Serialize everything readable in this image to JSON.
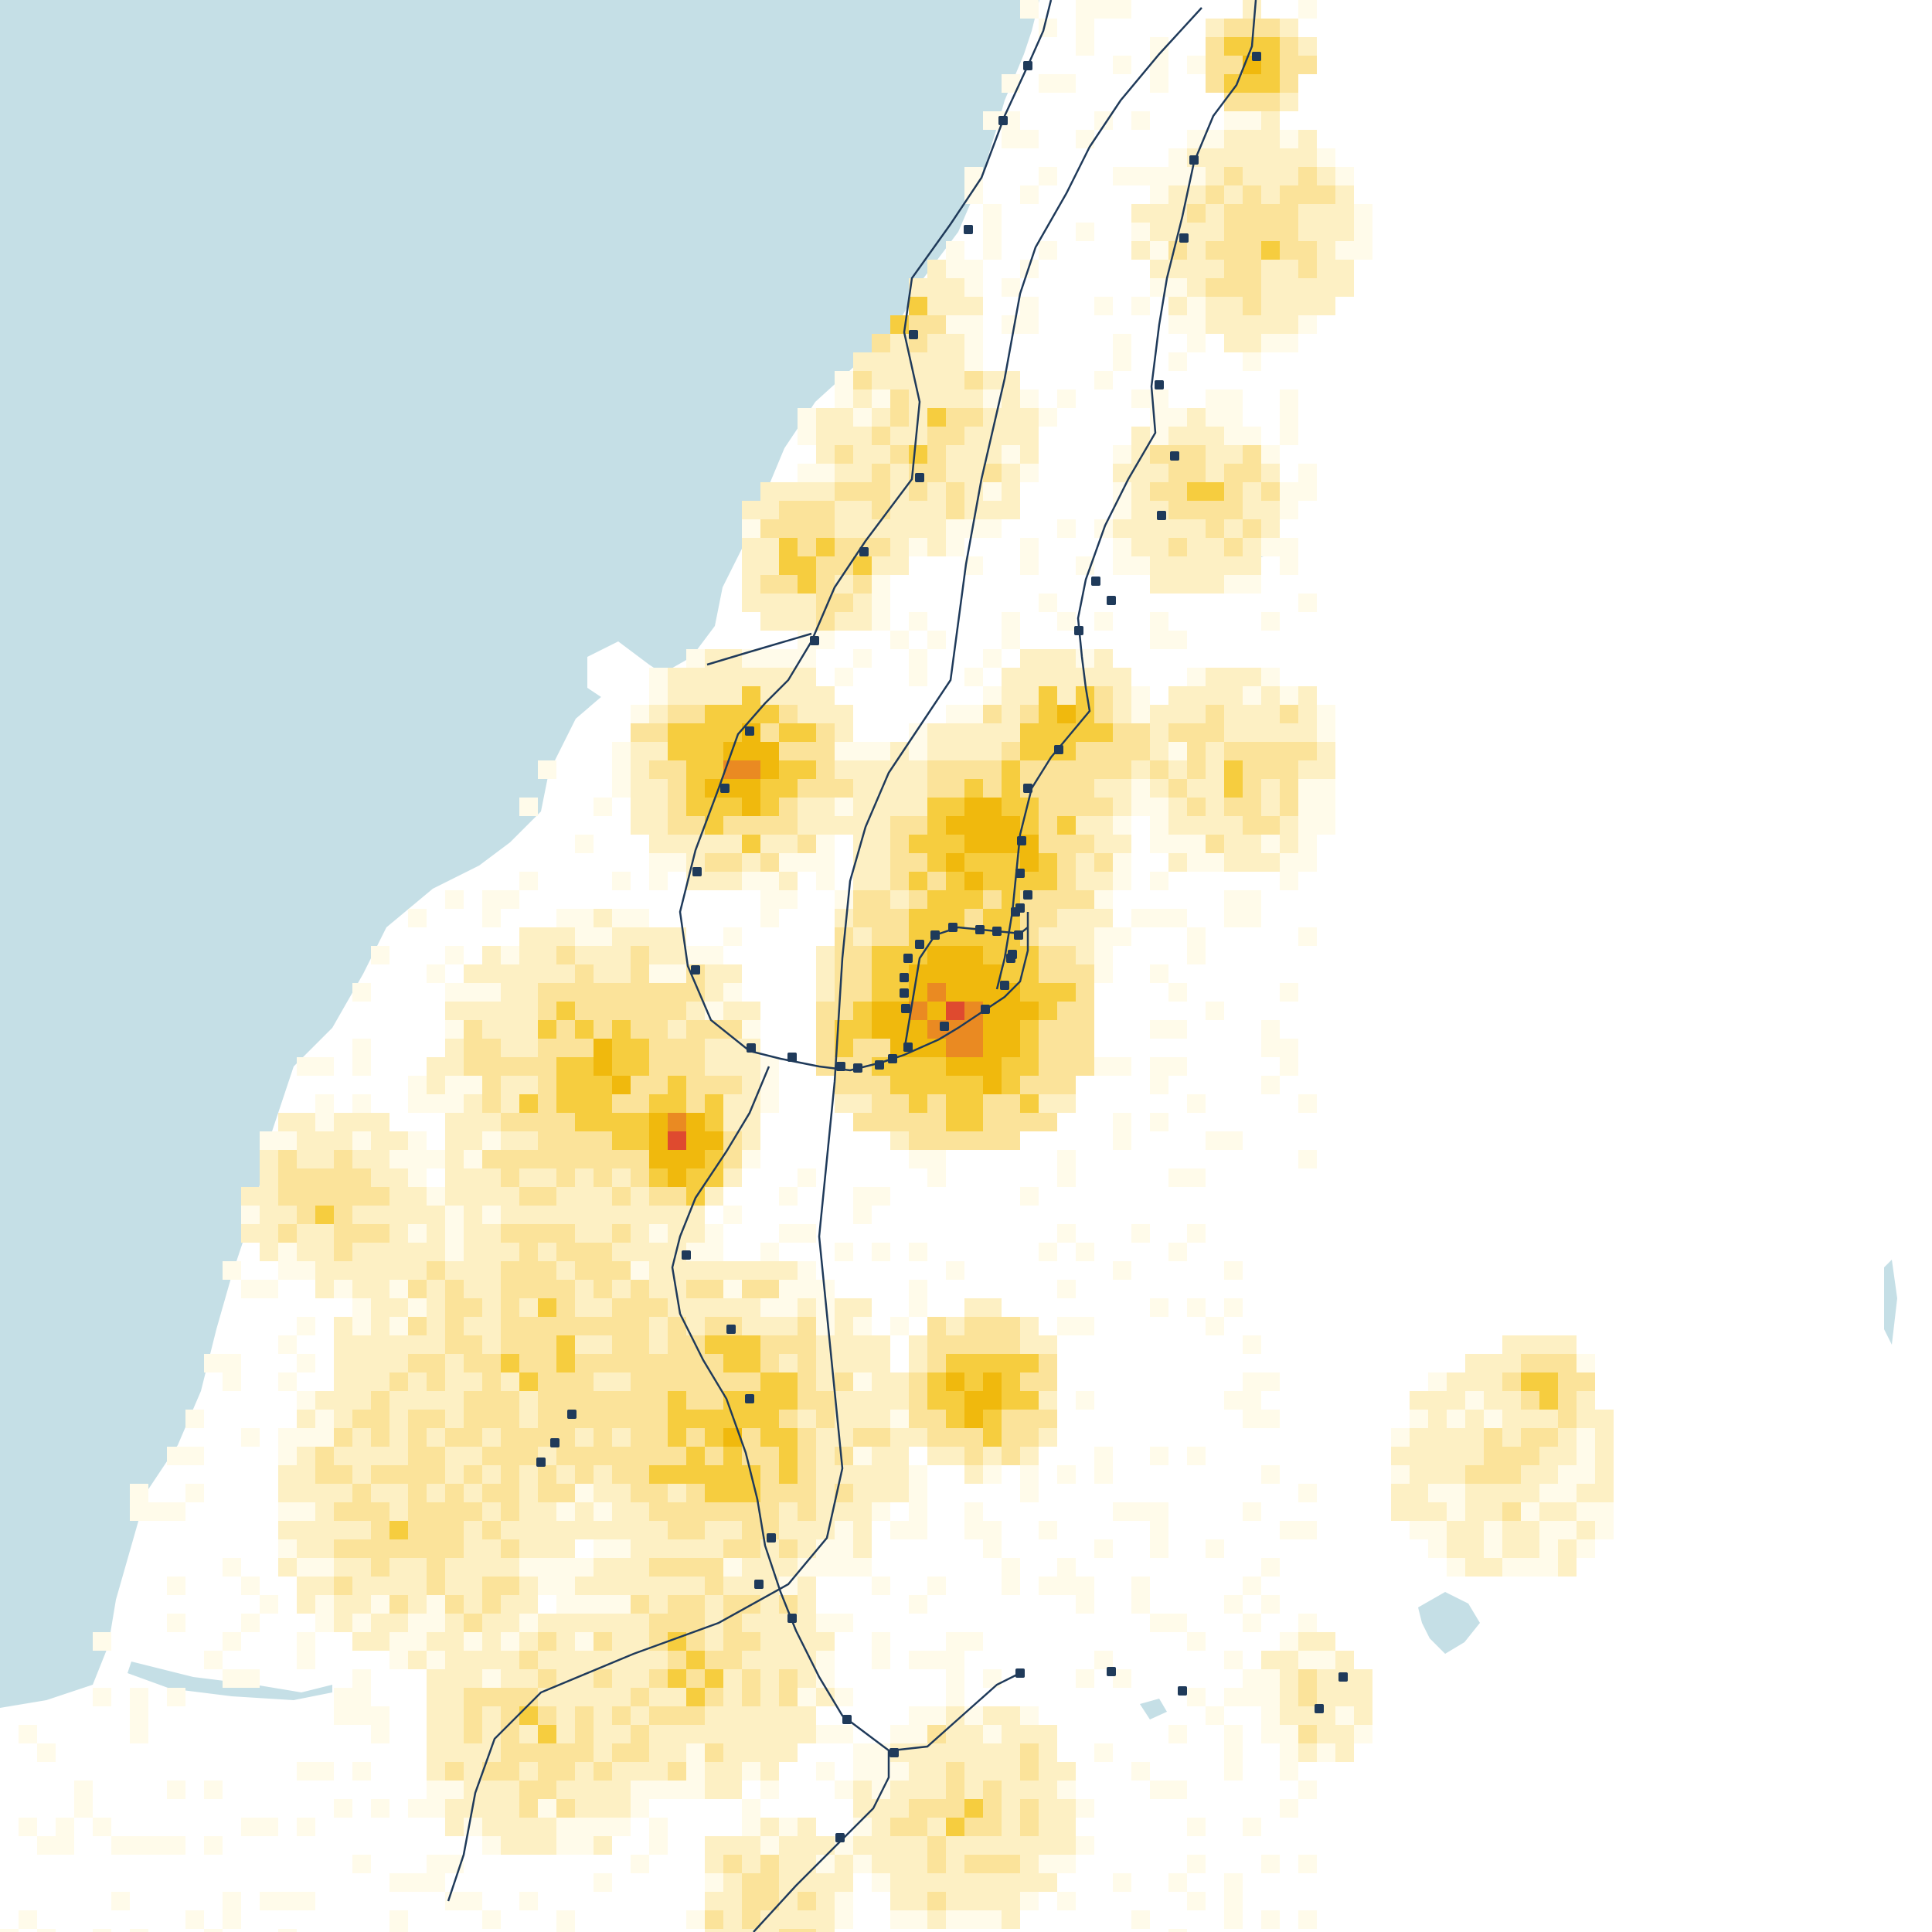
{
  "map": {
    "colors": {
      "sea": "#c5dfe6",
      "land": "#ffffff",
      "rail": "#1f3a5a",
      "station": "#1f3a5a",
      "density_scale": [
        "#fffbea",
        "#fdf0c4",
        "#fbe39a",
        "#f6cd3f",
        "#f0b90d",
        "#ea8a22",
        "#df4a2f"
      ]
    },
    "layers": [
      "sea",
      "inland-water",
      "population-density-grid",
      "railway-lines",
      "stations"
    ],
    "icons": {
      "station": "station-square-icon"
    },
    "density_hotspots": [
      {
        "id": "central-city",
        "level": 6
      },
      {
        "id": "southwest-city",
        "level": 6
      },
      {
        "id": "north-town",
        "level": 5
      },
      {
        "id": "south-town",
        "level": 5
      },
      {
        "id": "east-town",
        "level": 4
      }
    ]
  }
}
